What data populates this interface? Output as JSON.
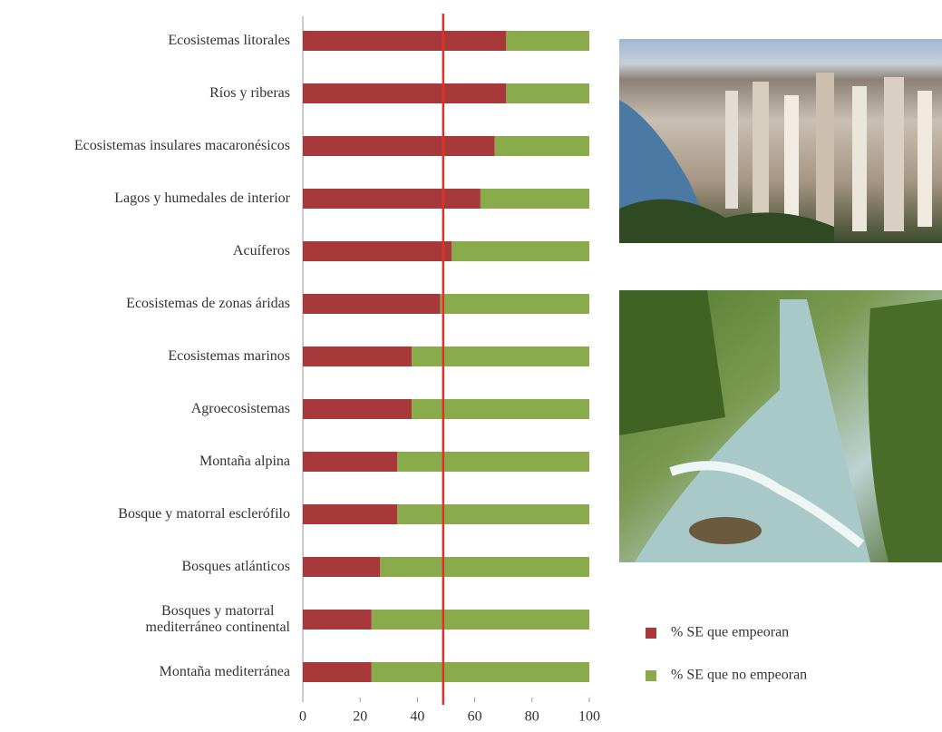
{
  "chart_data": {
    "type": "stacked-barh",
    "categories": [
      "Ecosistemas litorales",
      "Ríos y riberas",
      "Ecosistemas insulares macaronésicos",
      "Lagos y humedales de interior",
      "Acuíferos",
      "Ecosistemas de zonas áridas",
      "Ecosistemas marinos",
      "Agroecosistemas",
      "Montaña alpina",
      "Bosque y matorral esclerófilo",
      "Bosques atlánticos",
      "Bosques y matorral\nmediterráneo continental",
      "Montaña mediterránea"
    ],
    "series": [
      {
        "name": "% SE que empeoran",
        "color": "#a8393a",
        "values": [
          71,
          71,
          67,
          62,
          52,
          48,
          38,
          38,
          33,
          33,
          27,
          24,
          24
        ]
      },
      {
        "name": "% SE que no empeoran",
        "color": "#8aab4c",
        "values": [
          29,
          29,
          33,
          38,
          48,
          52,
          62,
          62,
          67,
          67,
          73,
          76,
          76
        ]
      }
    ],
    "xlim": [
      0,
      100
    ],
    "xticks": [
      0,
      20,
      40,
      60,
      80,
      100
    ],
    "reference_line": {
      "value": 49,
      "color": "#e0302a"
    }
  }
}
